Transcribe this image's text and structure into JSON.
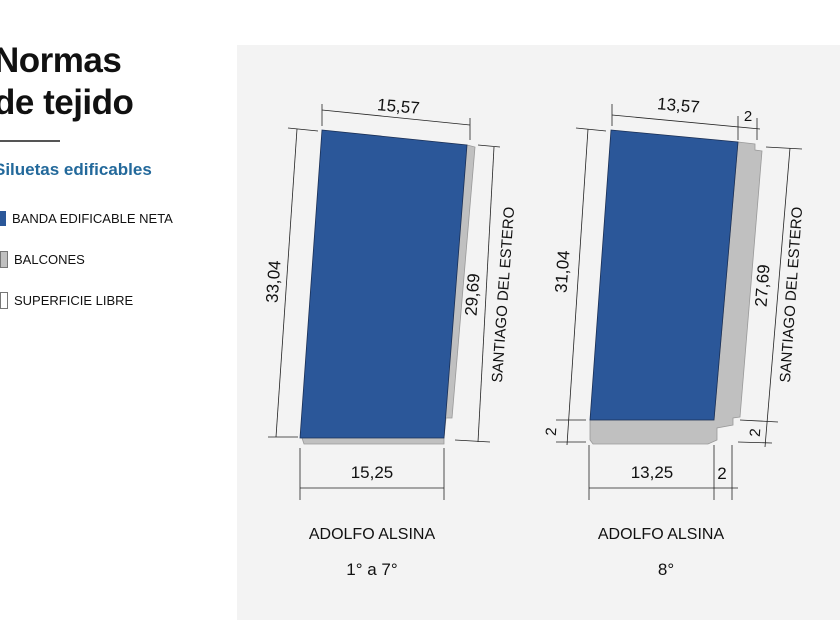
{
  "header": {
    "title_line1": "Normas",
    "title_line2": "de tejido",
    "subtitle": "Siluetas edificables"
  },
  "legend": [
    {
      "label": "BANDA EDIFICABLE NETA",
      "color": "#2b5799"
    },
    {
      "label": "BALCONES",
      "color": "#c0c0c0"
    },
    {
      "label": "SUPERFICIE LIBRE",
      "color": "#ffffff"
    }
  ],
  "plans": [
    {
      "street_bottom": "ADOLFO ALSINA",
      "street_side": "SANTIAGO DEL ESTERO",
      "floors": "1° a 7°",
      "top": "15,57",
      "left": "33,04",
      "right": "29,69",
      "bottom": "15,25"
    },
    {
      "street_bottom": "ADOLFO ALSINA",
      "street_side": "SANTIAGO DEL ESTERO",
      "floors": "8°",
      "top": "13,57",
      "top_offset": "2",
      "left": "31,04",
      "left_offset": "2",
      "right": "27,69",
      "right_offset": "2",
      "bottom": "13,25",
      "bottom_offset": "2"
    }
  ],
  "colors": {
    "blue": "#2b5799",
    "gray": "#c0c0c0",
    "panel": "#f3f3f3",
    "subtitle": "#23699b"
  }
}
